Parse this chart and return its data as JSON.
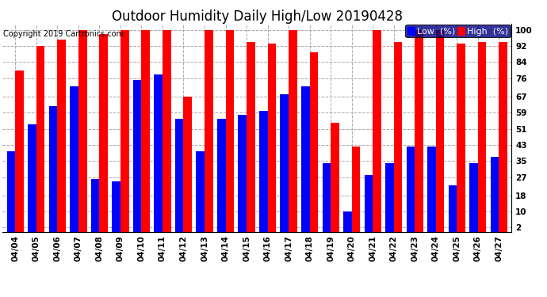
{
  "title": "Outdoor Humidity Daily High/Low 20190428",
  "copyright": "Copyright 2019 Cartronics.com",
  "dates": [
    "04/04",
    "04/05",
    "04/06",
    "04/07",
    "04/08",
    "04/09",
    "04/10",
    "04/11",
    "04/12",
    "04/13",
    "04/14",
    "04/15",
    "04/16",
    "04/17",
    "04/18",
    "04/19",
    "04/20",
    "04/21",
    "04/22",
    "04/23",
    "04/24",
    "04/25",
    "04/26",
    "04/27"
  ],
  "high": [
    80,
    92,
    95,
    100,
    98,
    100,
    100,
    100,
    67,
    100,
    100,
    94,
    93,
    100,
    89,
    54,
    42,
    100,
    94,
    100,
    100,
    93,
    94,
    94
  ],
  "low": [
    40,
    53,
    62,
    72,
    26,
    25,
    75,
    78,
    56,
    40,
    56,
    58,
    60,
    68,
    72,
    34,
    10,
    28,
    34,
    42,
    42,
    23,
    34,
    37
  ],
  "high_color": "#ff0000",
  "low_color": "#0000ff",
  "bg_color": "#ffffff",
  "grid_color": "#aaaaaa",
  "yticks": [
    2,
    10,
    18,
    27,
    35,
    43,
    51,
    59,
    67,
    76,
    84,
    92,
    100
  ],
  "ylim": [
    0,
    103
  ],
  "bar_width": 0.4,
  "title_fontsize": 12,
  "tick_fontsize": 7.5,
  "copyright_fontsize": 7
}
